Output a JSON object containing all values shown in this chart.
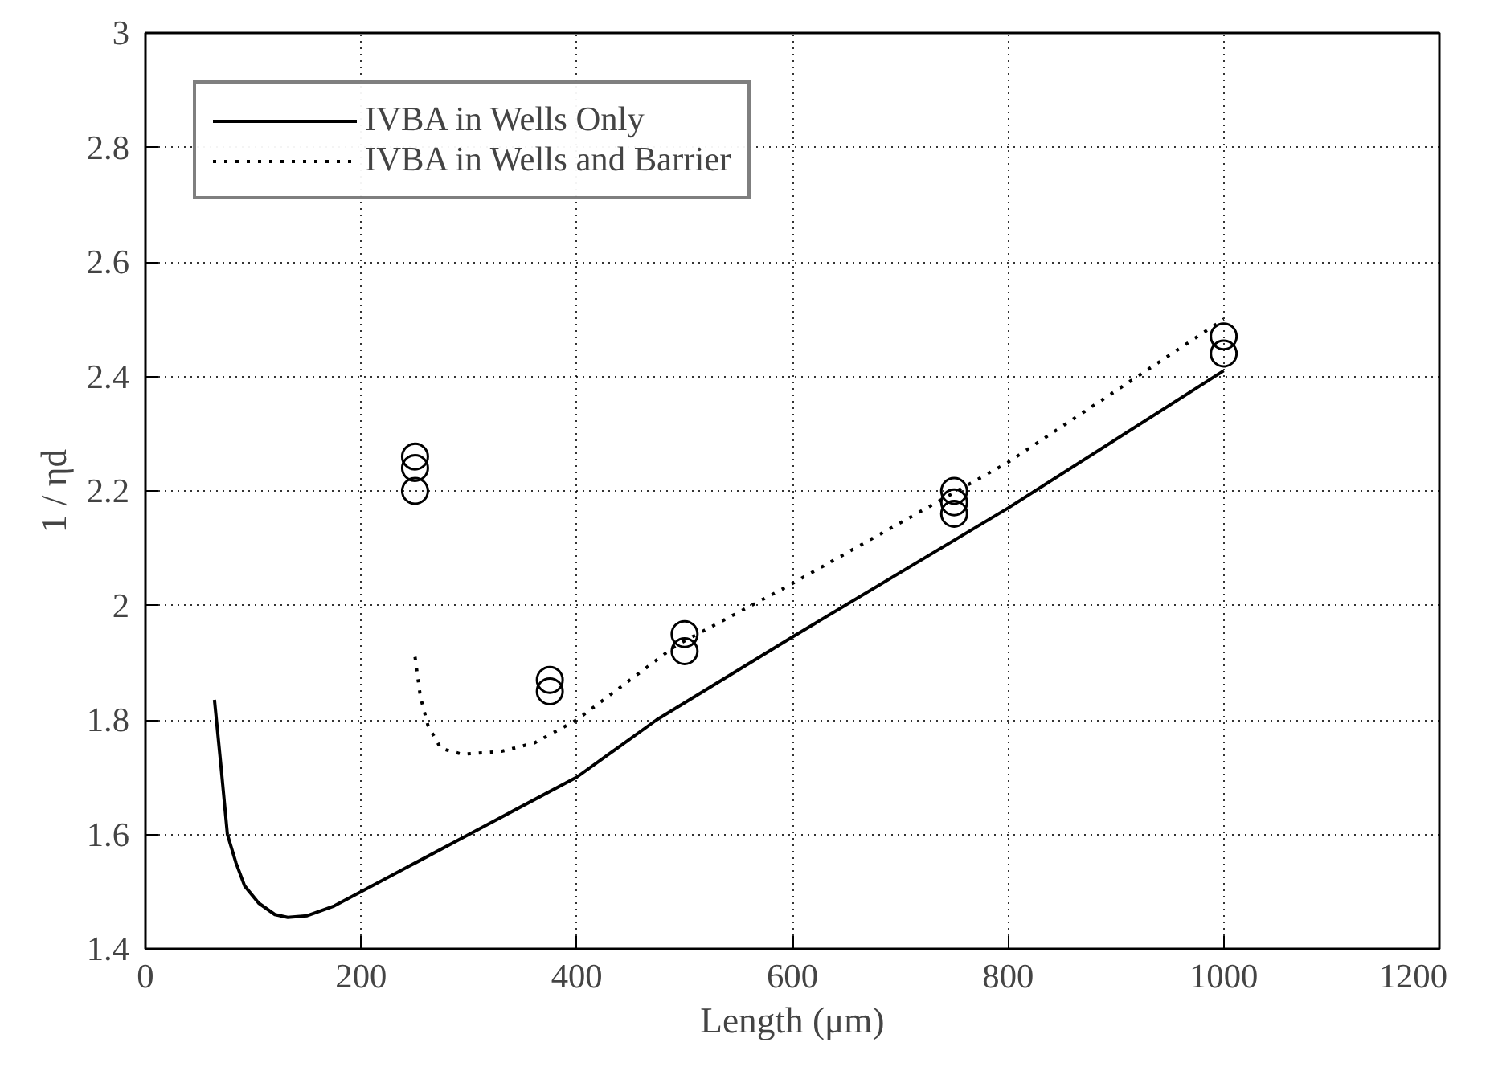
{
  "chart_data": {
    "type": "line",
    "xlabel": "Length (μm)",
    "ylabel": "1 / ηd",
    "xlim": [
      0,
      1200
    ],
    "ylim": [
      1.4,
      3
    ],
    "xticks": [
      0,
      200,
      400,
      600,
      800,
      1000,
      1200
    ],
    "yticks": [
      1.4,
      1.6,
      1.8,
      {
        "value": 2,
        "label": "2"
      },
      2.2,
      2.4,
      2.6,
      2.8,
      {
        "value": 3,
        "label": "3"
      }
    ],
    "grid": true,
    "legend": "top left",
    "series": [
      {
        "name": "IVBA in Wells Only",
        "line_style": "solid",
        "color": "#000000",
        "x": [
          64,
          70,
          76,
          84,
          92,
          105,
          120,
          132,
          150,
          175,
          200,
          250,
          300,
          350,
          400,
          474,
          600,
          800,
          1000
        ],
        "values": [
          1.835,
          1.72,
          1.6,
          1.55,
          1.51,
          1.48,
          1.46,
          1.455,
          1.458,
          1.475,
          1.5,
          1.55,
          1.6,
          1.65,
          1.7,
          1.8,
          1.945,
          2.17,
          2.41
        ]
      },
      {
        "name": "IVBA in Wells and Barrier",
        "line_style": "dotted",
        "color": "#000000",
        "x": [
          250,
          255,
          262,
          274,
          294,
          330,
          361,
          400,
          492,
          592,
          800,
          1000
        ],
        "values": [
          1.91,
          1.84,
          1.79,
          1.75,
          1.74,
          1.745,
          1.76,
          1.8,
          1.93,
          2.03,
          2.25,
          2.5
        ]
      },
      {
        "type": "scatter",
        "marker": "circle",
        "color": "#000000",
        "x": [
          250,
          250,
          250,
          375,
          375,
          500,
          500,
          750,
          750,
          750,
          1000,
          1000
        ],
        "values": [
          2.26,
          2.24,
          2.2,
          1.87,
          1.85,
          1.95,
          1.92,
          2.2,
          2.18,
          2.16,
          2.47,
          2.44
        ]
      }
    ]
  }
}
